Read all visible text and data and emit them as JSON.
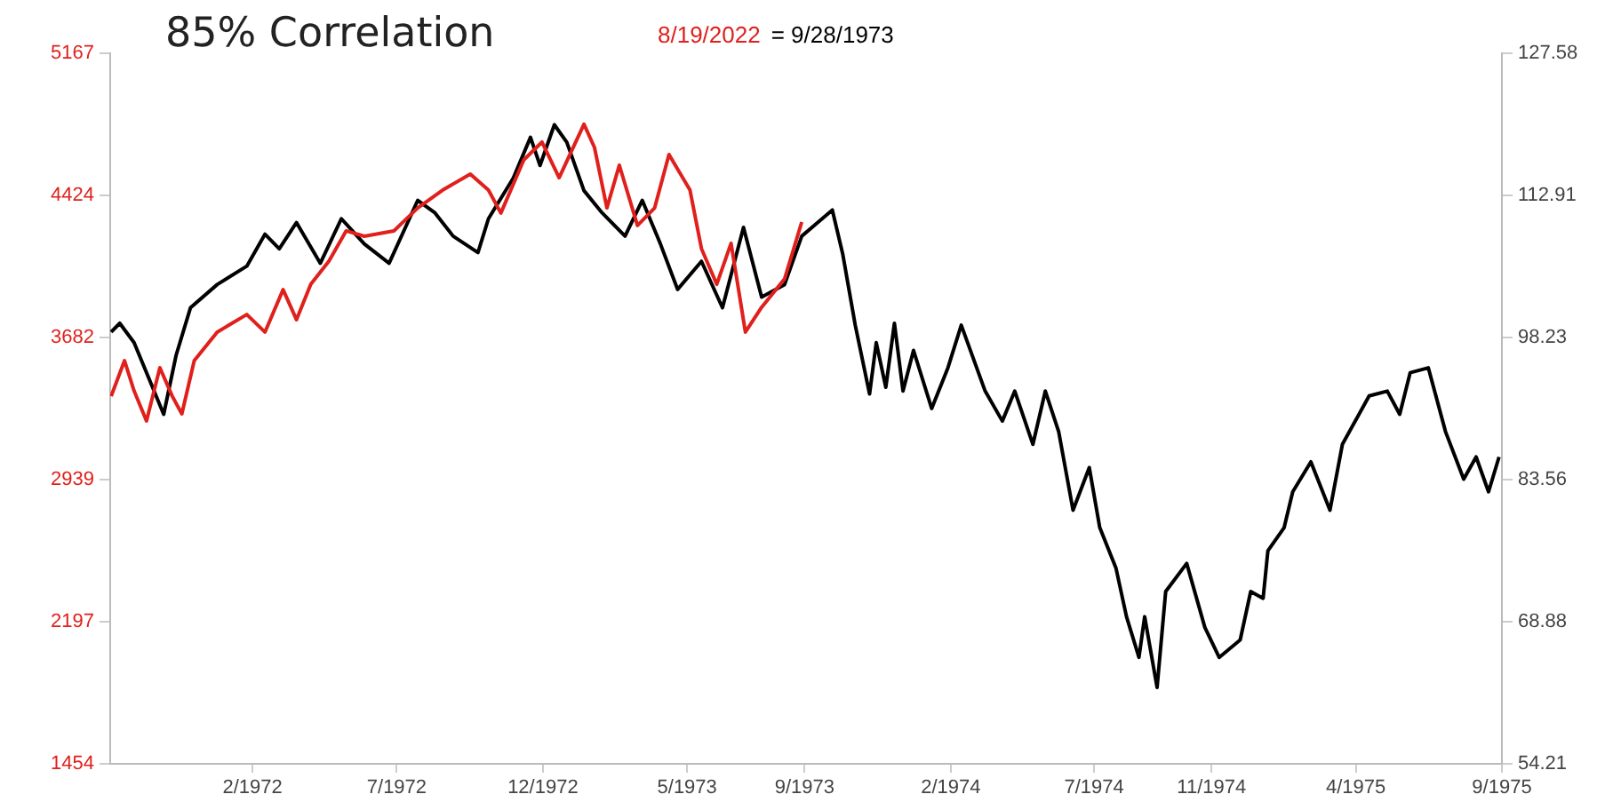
{
  "chart_data": {
    "type": "line",
    "title": "85% Correlation",
    "legend": "top",
    "grid": false,
    "marker": "none",
    "line_style": "solid",
    "xlim": [
      "1971-09-05",
      "1975-09-01"
    ],
    "xticks": [
      {
        "value": "1972-02",
        "label": "2/1972"
      },
      {
        "value": "1972-07",
        "label": "7/1972"
      },
      {
        "value": "1972-12",
        "label": "12/1972"
      },
      {
        "value": "1973-05",
        "label": "5/1973"
      },
      {
        "value": "1973-09",
        "label": "9/1973"
      },
      {
        "value": "1974-02",
        "label": "2/1974"
      },
      {
        "value": "1974-07",
        "label": "7/1974"
      },
      {
        "value": "1974-11",
        "label": "11/1974"
      },
      {
        "value": "1975-04",
        "label": "4/1975"
      },
      {
        "value": "1975-09",
        "label": "9/1975"
      }
    ],
    "ylim": [
      1454,
      5167
    ],
    "yticks": [
      1454,
      2197,
      2939,
      3682,
      4424,
      5167
    ],
    "y2lim": [
      54.21,
      127.58
    ],
    "y2ticks": [
      54.21,
      68.88,
      83.56,
      98.23,
      112.91,
      127.58
    ],
    "series": [
      {
        "name": "8/19/2022",
        "color": "#e0201c",
        "axis": "y",
        "x": [
          "1971-09-06",
          "1971-09-20",
          "1971-09-30",
          "1971-10-13",
          "1971-10-27",
          "1971-11-09",
          "1971-11-19",
          "1971-12-02",
          "1971-12-26",
          "1972-01-26",
          "1972-02-14",
          "1972-03-04",
          "1972-03-18",
          "1972-04-02",
          "1972-04-21",
          "1972-05-09",
          "1972-05-28",
          "1972-06-28",
          "1972-07-23",
          "1972-08-18",
          "1972-09-16",
          "1972-10-05",
          "1972-10-18",
          "1972-11-11",
          "1972-11-30",
          "1972-12-18",
          "1973-01-13",
          "1973-01-24",
          "1973-02-06",
          "1973-02-19",
          "1973-03-10",
          "1973-03-28",
          "1973-04-12",
          "1973-05-04",
          "1973-05-16",
          "1973-06-01",
          "1973-06-16",
          "1973-07-01",
          "1973-07-18",
          "1973-08-11",
          "1973-08-29"
        ],
        "values": [
          3375,
          3561,
          3403,
          3246,
          3524,
          3375,
          3283,
          3561,
          3710,
          3802,
          3710,
          3932,
          3775,
          3960,
          4081,
          4239,
          4211,
          4239,
          4359,
          4452,
          4536,
          4452,
          4332,
          4610,
          4703,
          4517,
          4796,
          4675,
          4359,
          4582,
          4267,
          4359,
          4638,
          4452,
          4146,
          3960,
          4174,
          3710,
          3840,
          3988,
          4285
        ]
      },
      {
        "name": "= 9/28/1973",
        "color": "#000000",
        "axis": "y2",
        "x": [
          "1971-09-06",
          "1971-09-15",
          "1971-09-30",
          "1971-10-13",
          "1971-10-31",
          "1971-11-13",
          "1971-11-28",
          "1971-12-26",
          "1972-01-26",
          "1972-02-14",
          "1972-02-29",
          "1972-03-18",
          "1972-04-12",
          "1972-05-04",
          "1972-05-28",
          "1972-06-23",
          "1972-07-23",
          "1972-08-10",
          "1972-08-29",
          "1972-09-24",
          "1972-10-05",
          "1972-10-31",
          "1972-11-18",
          "1972-11-28",
          "1972-12-13",
          "1972-12-26",
          "1973-01-13",
          "1973-02-01",
          "1973-02-25",
          "1973-03-15",
          "1973-04-03",
          "1973-04-21",
          "1973-05-16",
          "1973-06-07",
          "1973-06-29",
          "1973-07-18",
          "1973-08-11",
          "1973-08-29",
          "1973-09-30",
          "1973-10-11",
          "1973-10-24",
          "1973-11-08",
          "1973-11-15",
          "1973-11-25",
          "1973-12-04",
          "1973-12-13",
          "1973-12-24",
          "1974-01-12",
          "1974-01-29",
          "1974-02-12",
          "1974-03-09",
          "1974-03-27",
          "1974-04-09",
          "1974-04-28",
          "1974-05-11",
          "1974-05-25",
          "1974-06-09",
          "1974-06-26",
          "1974-07-07",
          "1974-07-24",
          "1974-08-04",
          "1974-08-17",
          "1974-08-23",
          "1974-09-05",
          "1974-09-14",
          "1974-10-06",
          "1974-10-25",
          "1974-11-09",
          "1974-12-01",
          "1974-12-12",
          "1974-12-25",
          "1974-12-30",
          "1975-01-16",
          "1975-01-25",
          "1975-02-13",
          "1975-03-05",
          "1975-03-18",
          "1975-04-15",
          "1975-05-04",
          "1975-05-17",
          "1975-05-28",
          "1975-06-16",
          "1975-07-04",
          "1975-07-23",
          "1975-08-05",
          "1975-08-18",
          "1975-08-29"
        ],
        "values": [
          98.8,
          99.7,
          97.7,
          94.6,
          90.3,
          96.4,
          101.3,
          103.7,
          105.6,
          108.9,
          107.4,
          110.1,
          105.9,
          110.5,
          107.9,
          105.9,
          112.4,
          111.1,
          108.7,
          107.0,
          110.5,
          114.7,
          118.9,
          116.0,
          120.2,
          118.4,
          113.4,
          111.1,
          108.7,
          112.4,
          107.9,
          103.2,
          106.1,
          101.3,
          109.6,
          102.4,
          103.7,
          108.7,
          111.4,
          106.8,
          99.5,
          92.4,
          97.7,
          93.1,
          99.7,
          92.7,
          96.9,
          90.9,
          95.1,
          99.5,
          92.7,
          89.6,
          92.7,
          87.2,
          92.7,
          88.5,
          80.4,
          84.8,
          78.6,
          74.4,
          69.4,
          65.2,
          69.4,
          62.1,
          72.0,
          74.9,
          68.3,
          65.2,
          67.0,
          72.0,
          71.3,
          76.2,
          78.6,
          82.3,
          85.4,
          80.4,
          87.2,
          92.2,
          92.7,
          90.3,
          94.6,
          95.1,
          88.5,
          83.6,
          85.9,
          82.3,
          85.9
        ]
      }
    ]
  }
}
